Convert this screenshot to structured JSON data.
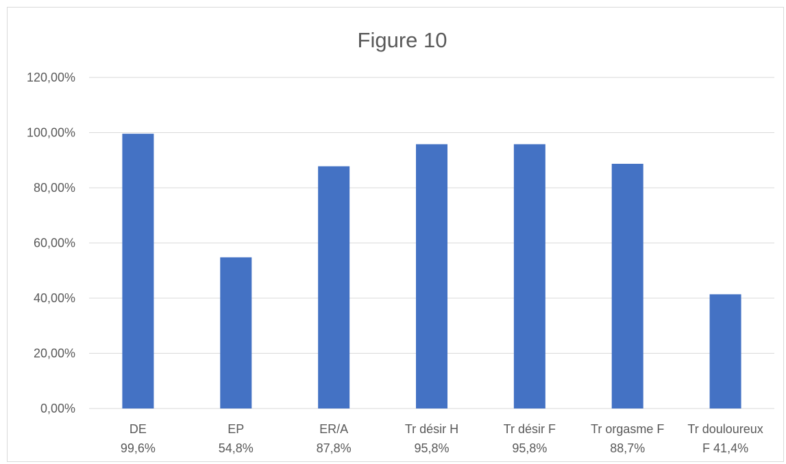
{
  "chart_data": {
    "type": "bar",
    "title": "Figure 10",
    "xlabel": "",
    "ylabel": "",
    "categories": [
      [
        "DE",
        "99,6%"
      ],
      [
        "EP",
        "54,8%"
      ],
      [
        "ER/A",
        "87,8%"
      ],
      [
        "Tr désir H",
        "95,8%"
      ],
      [
        "Tr désir F",
        "95,8%"
      ],
      [
        "Tr orgasme F",
        "88,7%"
      ],
      [
        "Tr douloureux",
        "F       41,4%"
      ]
    ],
    "values": [
      0.996,
      0.548,
      0.878,
      0.958,
      0.958,
      0.887,
      0.414
    ],
    "ylim": [
      0,
      1.2
    ],
    "yticks": [
      0,
      0.2,
      0.4,
      0.6,
      0.8,
      1.0,
      1.2
    ],
    "ytick_labels": [
      "0,00%",
      "20,00%",
      "40,00%",
      "60,00%",
      "80,00%",
      "100,00%",
      "120,00%"
    ],
    "grid": true,
    "legend": "none",
    "colors": {
      "bar": "#4472c4",
      "grid": "#d9d9d9",
      "text": "#595959"
    }
  }
}
